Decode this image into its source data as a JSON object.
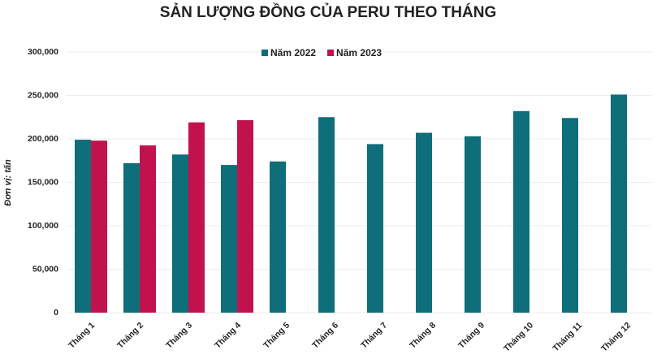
{
  "chart_data": {
    "type": "bar",
    "title": "SẢN LƯỢNG ĐỒNG CỦA PERU THEO THÁNG",
    "y_label": "Đơn vị: tấn",
    "categories": [
      "Tháng 1",
      "Tháng 2",
      "Tháng 3",
      "Tháng 4",
      "Tháng 5",
      "Tháng 6",
      "Tháng 7",
      "Tháng 8",
      "Tháng 9",
      "Tháng 10",
      "Tháng 11",
      "Tháng 12"
    ],
    "series": [
      {
        "name": "Năm 2022",
        "color": "#0e6e7a",
        "values": [
          199000,
          172000,
          182000,
          170000,
          174000,
          225000,
          194000,
          207000,
          203000,
          232000,
          224000,
          251000
        ]
      },
      {
        "name": "Năm 2023",
        "color": "#c2124e",
        "values": [
          198000,
          192500,
          219000,
          221500,
          null,
          null,
          null,
          null,
          null,
          null,
          null,
          null
        ]
      }
    ],
    "ylim": [
      0,
      300000
    ],
    "yticks": [
      0,
      {
        "value": 50000,
        "label": "50,000"
      },
      {
        "value": 100000,
        "label": "100,000"
      },
      {
        "value": 150000,
        "label": "150,000"
      },
      {
        "value": 200000,
        "label": "200,000"
      },
      {
        "value": 250000,
        "label": "250,000"
      },
      {
        "value": 300000,
        "label": "300,000"
      }
    ],
    "grid": true
  }
}
